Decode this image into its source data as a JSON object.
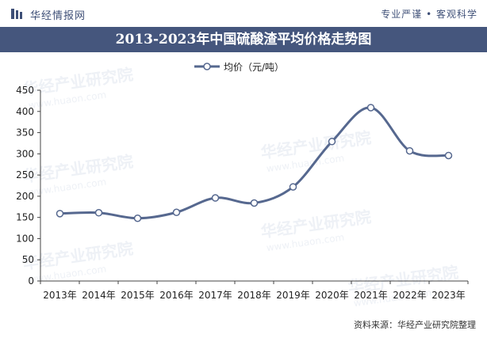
{
  "header": {
    "logo_text": "华经情报网",
    "slogan": "专业严谨 • 客观科学"
  },
  "colors": {
    "header_band": "#45567d",
    "series_line": "#56688f",
    "marker_fill": "#ffffff",
    "axis": "#444444"
  },
  "chart_data": {
    "type": "line",
    "title": "2013-2023年中国硫酸渣平均价格走势图",
    "xlabel": "",
    "ylabel": "",
    "categories": [
      "2013年",
      "2014年",
      "2015年",
      "2016年",
      "2017年",
      "2018年",
      "2019年",
      "2020年",
      "2021年",
      "2022年",
      "2023年"
    ],
    "series": [
      {
        "name": "均价（元/吨）",
        "values": [
          159,
          161,
          148,
          162,
          196,
          184,
          222,
          329,
          409,
          307,
          296
        ]
      }
    ],
    "ylim": [
      0,
      450
    ],
    "yticks": [
      0,
      50,
      100,
      150,
      200,
      250,
      300,
      350,
      400,
      450
    ],
    "grid": false,
    "legend_position": "top-center",
    "smooth": true
  },
  "footer": {
    "source": "资料来源：华经产业研究院整理"
  },
  "watermark": {
    "text_cn": "华经产业研究院",
    "text_url": "www.huaon.com"
  }
}
